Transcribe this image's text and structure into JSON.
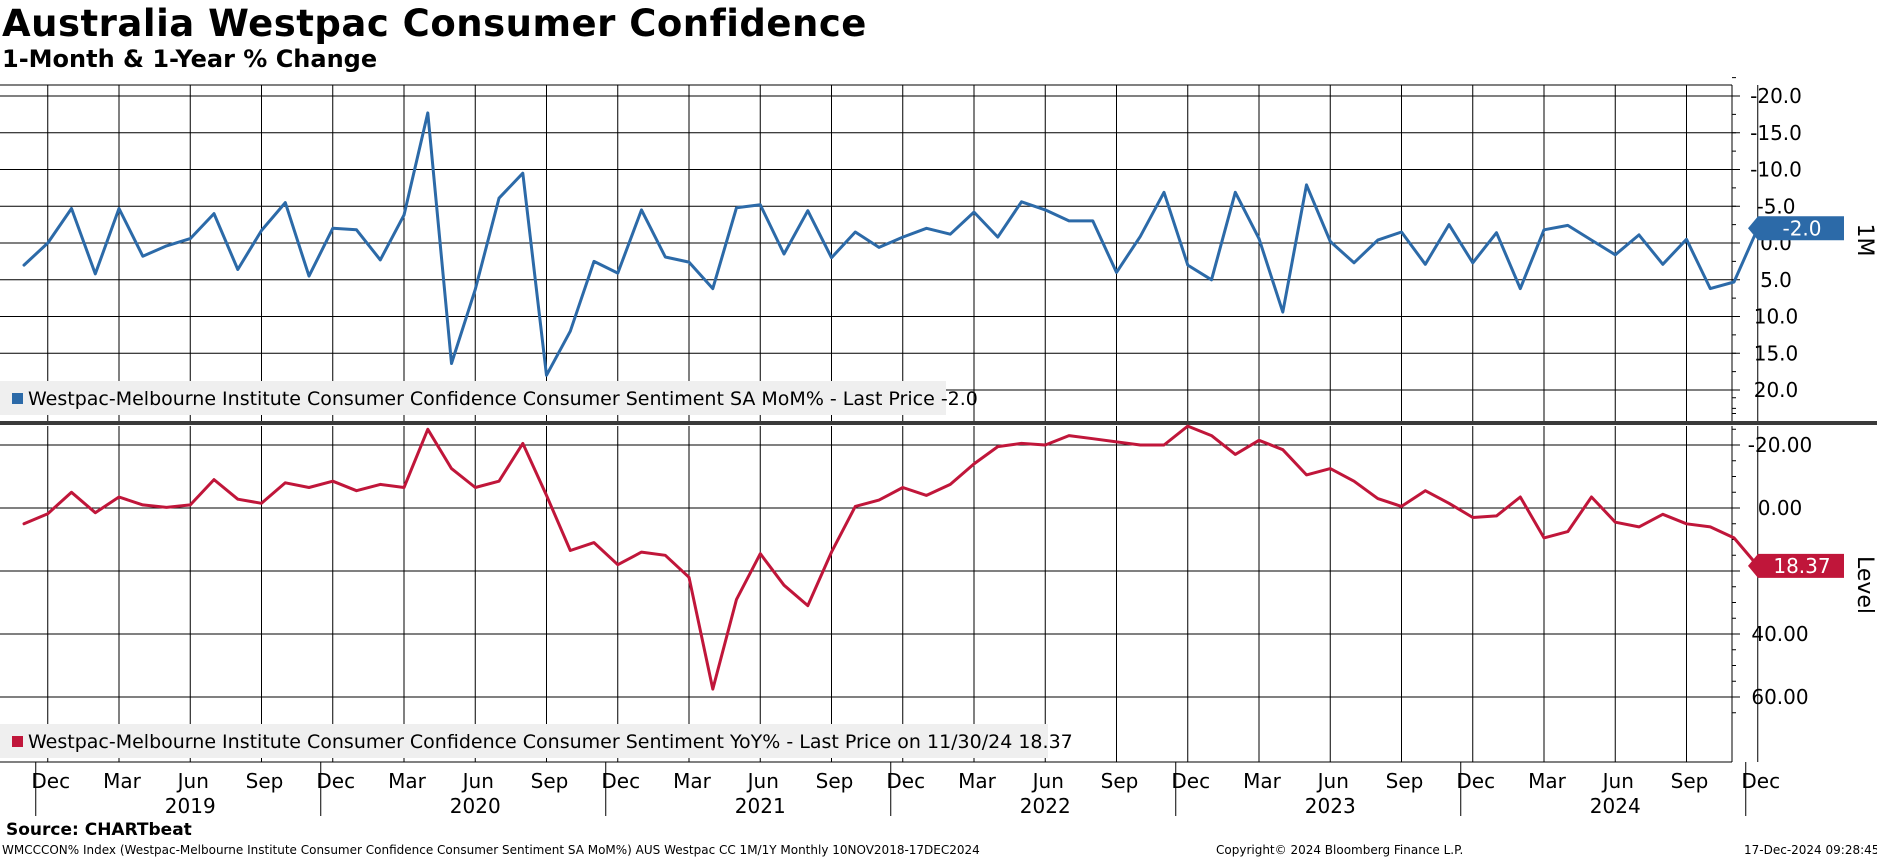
{
  "header": {
    "title": "Australia Westpac Consumer Confidence",
    "subtitle": "1-Month & 1-Year % Change"
  },
  "footer": {
    "source": "Source: CHARTbeat",
    "ticker_line": "WMCCCON% Index (Westpac-Melbourne Institute Consumer Confidence Consumer Sentiment SA MoM%) AUS Westpac CC 1M/1Y  Monthly 10NOV2018-17DEC2024",
    "copyright": "Copyright© 2024 Bloomberg Finance L.P.",
    "timestamp": "17-Dec-2024 09:28:45"
  },
  "colors": {
    "mom": "#2c6aa8",
    "yoy": "#c0163a",
    "grid": "#000000",
    "legend_bg": "#efefef"
  },
  "chart_data": [
    {
      "type": "line",
      "panel": "top",
      "axis_side_label": "1M",
      "yticks": [
        20,
        15,
        10,
        5,
        0,
        -5,
        -10,
        -15,
        -20
      ],
      "ytick_labels": [
        "20.0",
        "15.0",
        "10.0",
        "5.0",
        "0.0",
        "-5.0",
        "-10.0",
        "-15.0",
        "-20.0"
      ],
      "ylim": [
        -23,
        23
      ],
      "last_value_label": "-2.0",
      "series": [
        {
          "name": "Westpac-Melbourne Institute Consumer Confidence Consumer Sentiment SA MoM% - Last Price -2.0",
          "start": "2018-11",
          "values": [
            3.0,
            0.0,
            -4.7,
            4.2,
            -4.7,
            1.8,
            0.4,
            -0.6,
            -4.0,
            3.6,
            -1.7,
            -5.5,
            4.5,
            -2.0,
            -1.8,
            2.3,
            -3.8,
            -17.7,
            16.4,
            6.3,
            -6.1,
            -9.5,
            18.0,
            12.0,
            2.5,
            4.1,
            -4.5,
            1.9,
            2.6,
            6.2,
            -4.8,
            -5.2,
            1.5,
            -4.4,
            2.0,
            -1.5,
            0.6,
            -0.8,
            -2.0,
            -1.2,
            -4.2,
            -0.8,
            -5.6,
            -4.5,
            -3.0,
            -3.0,
            4.0,
            -0.9,
            -6.9,
            3.0,
            5.0,
            -6.9,
            -0.6,
            9.4,
            -7.9,
            -0.2,
            2.7,
            -0.4,
            -1.5,
            2.9,
            -2.5,
            2.7,
            -1.4,
            6.2,
            -1.8,
            -2.4,
            -0.4,
            1.6,
            -1.1,
            2.9,
            -0.5,
            6.2,
            5.3,
            -2.0
          ]
        }
      ]
    },
    {
      "type": "line",
      "panel": "bottom",
      "axis_side_label": "Level",
      "yticks": [
        60,
        40,
        20,
        0,
        -20
      ],
      "ytick_labels": [
        "60.00",
        "40.00",
        "",
        "0.00",
        "-20.00"
      ],
      "ylim": [
        -40,
        65
      ],
      "last_value_label": "18.37",
      "series": [
        {
          "name": "Westpac-Melbourne Institute Consumer Confidence Consumer Sentiment YoY% - Last Price on 11/30/24 18.37",
          "start": "2018-11",
          "values": [
            5.0,
            1.8,
            -5.0,
            1.5,
            -3.5,
            -1.0,
            -0.2,
            -1.0,
            -9.0,
            -2.8,
            -1.5,
            -8.0,
            -6.5,
            -8.5,
            -5.5,
            -7.5,
            -6.5,
            -25.0,
            -12.5,
            -6.5,
            -8.5,
            -20.5,
            -4.0,
            13.5,
            11.0,
            18.0,
            14.0,
            15.0,
            22.0,
            57.5,
            29.0,
            14.5,
            24.5,
            31.0,
            14.0,
            -0.5,
            -2.5,
            -6.5,
            -4.0,
            -7.5,
            -14.0,
            -19.5,
            -20.5,
            -20.0,
            -23.0,
            -22.0,
            -21.0,
            -20.0,
            -20.0,
            -26.0,
            -23.0,
            -17.0,
            -21.5,
            -18.5,
            -10.5,
            -12.5,
            -8.5,
            -3.0,
            -0.5,
            -5.5,
            -1.5,
            3.0,
            2.5,
            -3.5,
            9.5,
            7.5,
            -3.5,
            4.5,
            6.0,
            2.0,
            5.0,
            6.0,
            9.5,
            18.37
          ]
        }
      ]
    },
    {
      "type": "axis",
      "panel": "x-axis",
      "month_ticks": [
        {
          "label": "Dec",
          "date": "2018-12"
        },
        {
          "label": "Mar",
          "date": "2019-03"
        },
        {
          "label": "Jun",
          "date": "2019-06"
        },
        {
          "label": "Sep",
          "date": "2019-09"
        },
        {
          "label": "Dec",
          "date": "2019-12"
        },
        {
          "label": "Mar",
          "date": "2020-03"
        },
        {
          "label": "Jun",
          "date": "2020-06"
        },
        {
          "label": "Sep",
          "date": "2020-09"
        },
        {
          "label": "Dec",
          "date": "2020-12"
        },
        {
          "label": "Mar",
          "date": "2021-03"
        },
        {
          "label": "Jun",
          "date": "2021-06"
        },
        {
          "label": "Sep",
          "date": "2021-09"
        },
        {
          "label": "Dec",
          "date": "2021-12"
        },
        {
          "label": "Mar",
          "date": "2022-03"
        },
        {
          "label": "Jun",
          "date": "2022-06"
        },
        {
          "label": "Sep",
          "date": "2022-09"
        },
        {
          "label": "Dec",
          "date": "2022-12"
        },
        {
          "label": "Mar",
          "date": "2023-03"
        },
        {
          "label": "Jun",
          "date": "2023-06"
        },
        {
          "label": "Sep",
          "date": "2023-09"
        },
        {
          "label": "Dec",
          "date": "2023-12"
        },
        {
          "label": "Mar",
          "date": "2024-03"
        },
        {
          "label": "Jun",
          "date": "2024-06"
        },
        {
          "label": "Sep",
          "date": "2024-09"
        },
        {
          "label": "Dec",
          "date": "2024-12"
        }
      ],
      "year_labels": [
        {
          "label": "2019",
          "date": "2019-06"
        },
        {
          "label": "2020",
          "date": "2020-06"
        },
        {
          "label": "2021",
          "date": "2021-06"
        },
        {
          "label": "2022",
          "date": "2022-06"
        },
        {
          "label": "2023",
          "date": "2023-06"
        },
        {
          "label": "2024",
          "date": "2024-06"
        }
      ],
      "year_boundaries": [
        "2018-12",
        "2019-12",
        "2020-12",
        "2021-12",
        "2022-12",
        "2023-12",
        "2024-12"
      ]
    }
  ]
}
